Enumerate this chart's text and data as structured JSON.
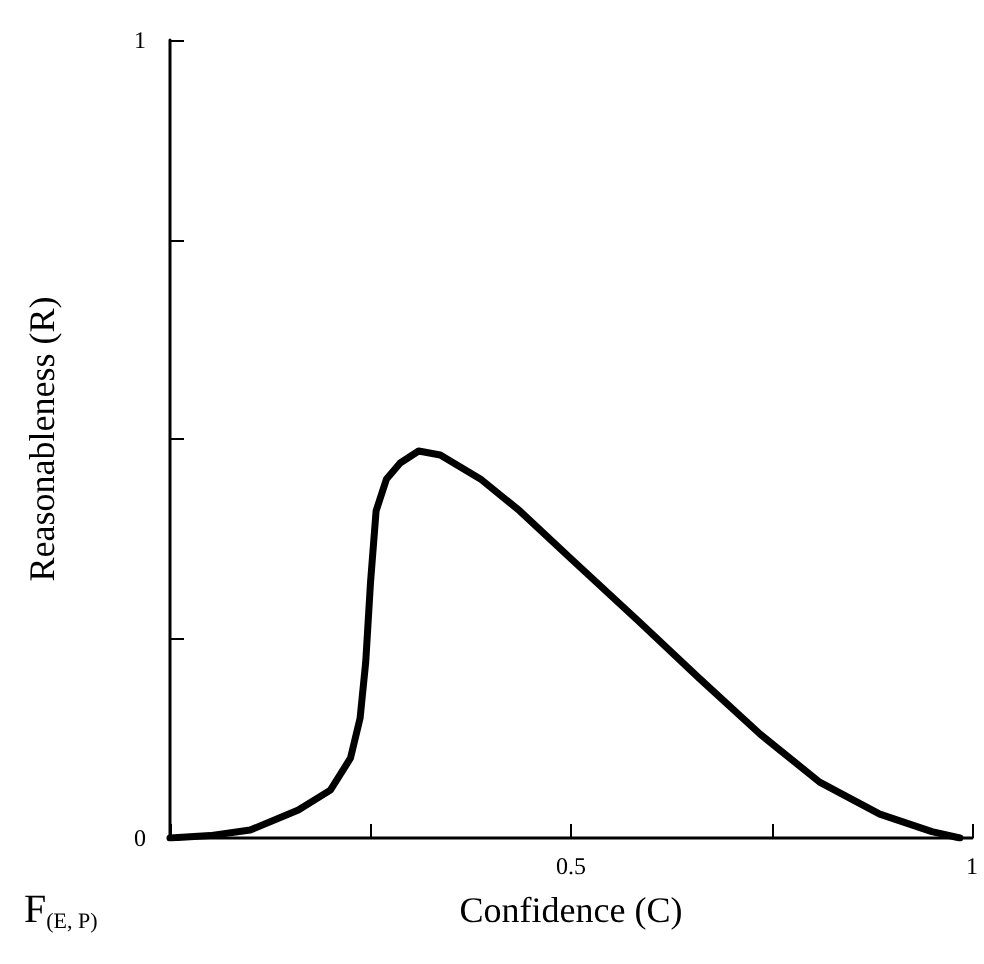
{
  "chart_data": {
    "type": "line",
    "xlabel": "Confidence (C)",
    "ylabel": "Reasonableness (R)",
    "annotations": [
      "F$_{(E, P)}$"
    ],
    "x": [
      0,
      0.05,
      0.1,
      0.16,
      0.2,
      0.225,
      0.237,
      0.244,
      0.25,
      0.257,
      0.27,
      0.287,
      0.31,
      0.337,
      0.387,
      0.436,
      0.5,
      0.586,
      0.66,
      0.736,
      0.81,
      0.885,
      0.95,
      0.985
    ],
    "series": [
      {
        "color": "#000000",
        "values": [
          0,
          0.003,
          0.01,
          0.035,
          0.06,
          0.1,
          0.15,
          0.22,
          0.32,
          0.41,
          0.45,
          0.47,
          0.485,
          0.48,
          0.45,
          0.41,
          0.35,
          0.27,
          0.2,
          0.13,
          0.07,
          0.03,
          0.008,
          0
        ]
      }
    ],
    "xlim": [
      0,
      1
    ],
    "ylim": [
      0,
      1
    ],
    "xticks": [
      {
        "value": 0,
        "label": null
      },
      {
        "value": 0.25,
        "label": null
      },
      0.5,
      {
        "value": 0.75,
        "label": null
      },
      1
    ],
    "yticks": [
      0,
      {
        "value": 0.25,
        "label": null
      },
      {
        "value": 0.5,
        "label": null
      },
      {
        "value": 0.75,
        "label": null
      },
      1
    ],
    "grid": false,
    "legend": false,
    "marker": "none",
    "line_style": "solid"
  }
}
